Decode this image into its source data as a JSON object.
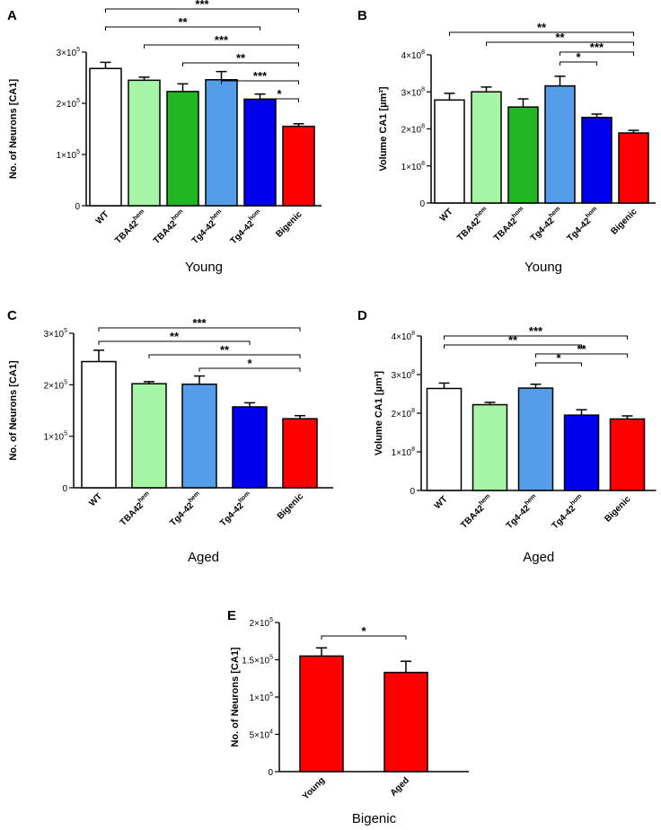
{
  "chart_data": [
    {
      "id": "A",
      "type": "bar",
      "letter": "A",
      "ylabel": "No. of Neurons [CA1]",
      "xlabel": "Young",
      "ylim": [
        0,
        300000
      ],
      "ytick_values": [
        0,
        100000,
        200000,
        300000
      ],
      "ytick_labels": [
        {
          "base": "0",
          "exp": ""
        },
        {
          "base": "1×10",
          "exp": "5"
        },
        {
          "base": "2×10",
          "exp": "5"
        },
        {
          "base": "3×10",
          "exp": "5"
        }
      ],
      "categories": [
        {
          "base": "WT",
          "sup": ""
        },
        {
          "base": "TBA42",
          "sup": "hem"
        },
        {
          "base": "TBA42",
          "sup": "hom"
        },
        {
          "base": "Tg4-42",
          "sup": "hem"
        },
        {
          "base": "Tg4-42",
          "sup": "hom"
        },
        {
          "base": "Bigenic",
          "sup": ""
        }
      ],
      "values": [
        268000,
        245000,
        223000,
        246000,
        208000,
        155000
      ],
      "errors": [
        12000,
        6000,
        15000,
        16000,
        10000,
        5000
      ],
      "colors": [
        "#ffffff",
        "#a6f5a6",
        "#22b522",
        "#559de8",
        "#0000ee",
        "#ff0000"
      ],
      "significance": [
        {
          "from": 0,
          "to": 5,
          "label": "***"
        },
        {
          "from": 0,
          "to": 4,
          "label": "**"
        },
        {
          "from": 1,
          "to": 5,
          "label": "***"
        },
        {
          "from": 2,
          "to": 5,
          "label": "**"
        },
        {
          "from": 3,
          "to": 5,
          "label": "***"
        },
        {
          "from": 4,
          "to": 5,
          "label": "*"
        }
      ]
    },
    {
      "id": "B",
      "type": "bar",
      "letter": "B",
      "ylabel": "Volume CA1 [µm³]",
      "xlabel": "Young",
      "ylim": [
        0,
        400000000
      ],
      "ytick_values": [
        0,
        100000000,
        200000000,
        300000000,
        400000000
      ],
      "ytick_labels": [
        {
          "base": "0",
          "exp": ""
        },
        {
          "base": "1×10",
          "exp": "8"
        },
        {
          "base": "2×10",
          "exp": "8"
        },
        {
          "base": "3×10",
          "exp": "8"
        },
        {
          "base": "4×10",
          "exp": "8"
        }
      ],
      "categories": [
        {
          "base": "WT",
          "sup": ""
        },
        {
          "base": "TBA42",
          "sup": "hem"
        },
        {
          "base": "TBA42",
          "sup": "hom"
        },
        {
          "base": "Tg4-42",
          "sup": "hem"
        },
        {
          "base": "Tg4-42",
          "sup": "hom"
        },
        {
          "base": "Bigenic",
          "sup": ""
        }
      ],
      "values": [
        278000000,
        300000000,
        259000000,
        316000000,
        231000000,
        189000000
      ],
      "errors": [
        18000000,
        13000000,
        22000000,
        26000000,
        9000000,
        7000000
      ],
      "colors": [
        "#ffffff",
        "#a6f5a6",
        "#22b522",
        "#559de8",
        "#0000ee",
        "#ff0000"
      ],
      "significance": [
        {
          "from": 0,
          "to": 5,
          "label": "**"
        },
        {
          "from": 1,
          "to": 5,
          "label": "**"
        },
        {
          "from": 3,
          "to": 5,
          "label": "***"
        },
        {
          "from": 3,
          "to": 4,
          "label": "*"
        }
      ]
    },
    {
      "id": "C",
      "type": "bar",
      "letter": "C",
      "ylabel": "No. of Neurons [CA1]",
      "xlabel": "Aged",
      "ylim": [
        0,
        300000
      ],
      "ytick_values": [
        0,
        100000,
        200000,
        300000
      ],
      "ytick_labels": [
        {
          "base": "0",
          "exp": ""
        },
        {
          "base": "1×10",
          "exp": "5"
        },
        {
          "base": "2×10",
          "exp": "5"
        },
        {
          "base": "3×10",
          "exp": "5"
        }
      ],
      "categories": [
        {
          "base": "WT",
          "sup": ""
        },
        {
          "base": "TBA42",
          "sup": "hem"
        },
        {
          "base": "Tg4-42",
          "sup": "hem"
        },
        {
          "base": "Tg4-42",
          "sup": "hom"
        },
        {
          "base": "Bigenic",
          "sup": ""
        }
      ],
      "values": [
        245000,
        202000,
        201000,
        157000,
        134000
      ],
      "errors": [
        22000,
        4000,
        16000,
        8000,
        6000
      ],
      "colors": [
        "#ffffff",
        "#a6f5a6",
        "#559de8",
        "#0000ee",
        "#ff0000"
      ],
      "significance": [
        {
          "from": 0,
          "to": 4,
          "label": "***"
        },
        {
          "from": 0,
          "to": 3,
          "label": "**"
        },
        {
          "from": 1,
          "to": 4,
          "label": "**"
        },
        {
          "from": 2,
          "to": 4,
          "label": "*"
        }
      ]
    },
    {
      "id": "D",
      "type": "bar",
      "letter": "D",
      "ylabel": "Volume CA1 [µm³]",
      "xlabel": "Aged",
      "ylim": [
        0,
        400000000
      ],
      "ytick_values": [
        0,
        100000000,
        200000000,
        300000000,
        400000000
      ],
      "ytick_labels": [
        {
          "base": "0",
          "exp": ""
        },
        {
          "base": "1×10",
          "exp": "8"
        },
        {
          "base": "2×10",
          "exp": "8"
        },
        {
          "base": "3×10",
          "exp": "8"
        },
        {
          "base": "4×10",
          "exp": "8"
        }
      ],
      "categories": [
        {
          "base": "WT",
          "sup": ""
        },
        {
          "base": "TBA42",
          "sup": "hem"
        },
        {
          "base": "Tg4-42",
          "sup": "hem"
        },
        {
          "base": "Tg4-42",
          "sup": "hom"
        },
        {
          "base": "Bigenic",
          "sup": ""
        }
      ],
      "values": [
        264000000,
        222000000,
        265000000,
        195000000,
        185000000
      ],
      "errors": [
        14000000,
        6000000,
        10000000,
        14000000,
        8000000
      ],
      "colors": [
        "#ffffff",
        "#a6f5a6",
        "#559de8",
        "#0000ee",
        "#ff0000"
      ],
      "significance": [
        {
          "from": 0,
          "to": 4,
          "label": "***"
        },
        {
          "from": 0,
          "to": 3,
          "label": "**"
        },
        {
          "from": 2,
          "to": 4,
          "label": "**"
        },
        {
          "from": 2,
          "to": 3,
          "label": "*"
        }
      ]
    },
    {
      "id": "E",
      "type": "bar",
      "letter": "E",
      "ylabel": "No. of Neurons [CA1]",
      "xlabel": "Bigenic",
      "ylim": [
        0,
        200000
      ],
      "ytick_values": [
        0,
        50000,
        100000,
        150000,
        200000
      ],
      "ytick_labels": [
        {
          "base": "0",
          "exp": ""
        },
        {
          "base": "5×10",
          "exp": "4"
        },
        {
          "base": "1×10",
          "exp": "5"
        },
        {
          "base": "1.5×10",
          "exp": "5"
        },
        {
          "base": "2×10",
          "exp": "5"
        }
      ],
      "categories": [
        {
          "base": "Young",
          "sup": ""
        },
        {
          "base": "Aged",
          "sup": ""
        }
      ],
      "values": [
        155000,
        133000
      ],
      "errors": [
        11000,
        15000
      ],
      "colors": [
        "#ff0000",
        "#ff0000"
      ],
      "significance": [
        {
          "from": 0,
          "to": 1,
          "label": "*"
        }
      ]
    }
  ]
}
